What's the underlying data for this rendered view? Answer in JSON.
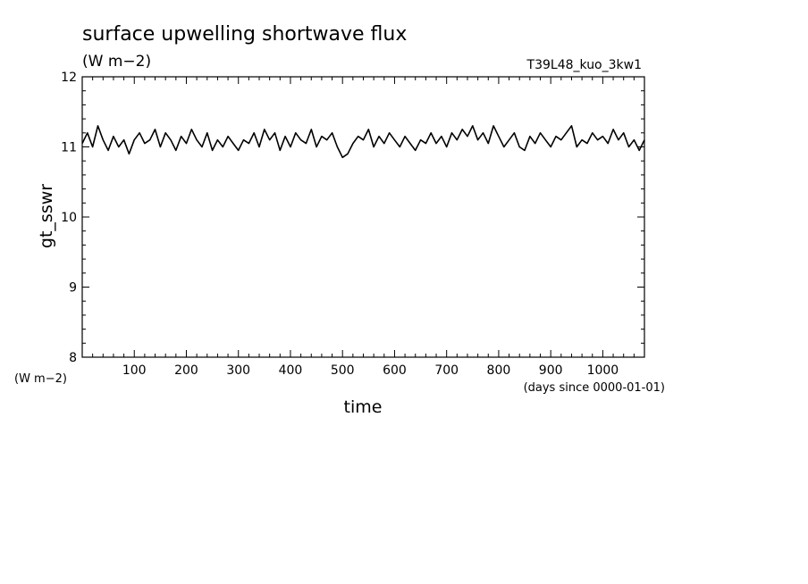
{
  "chart_data": {
    "type": "line",
    "title": "surface upwelling shortwave flux",
    "units": "(W m−2)",
    "run_label": "T39L48_kuo_3kw1",
    "ylabel": "gt_sswr",
    "y_units_label": "(W m−2)",
    "xlabel": "time",
    "x_units_label": "(days since 0000-01-01)",
    "xlim": [
      0,
      1080
    ],
    "ylim": [
      8,
      12
    ],
    "x_ticks": [
      100,
      200,
      300,
      400,
      500,
      600,
      700,
      800,
      900,
      1000
    ],
    "y_ticks": [
      8,
      9,
      10,
      11,
      12
    ],
    "grid": false,
    "series": [
      {
        "x": [
          0,
          10,
          20,
          30,
          40,
          50,
          60,
          70,
          80,
          90,
          100,
          110,
          120,
          130,
          140,
          150,
          160,
          170,
          180,
          190,
          200,
          210,
          220,
          230,
          240,
          250,
          260,
          270,
          280,
          290,
          300,
          310,
          320,
          330,
          340,
          350,
          360,
          370,
          380,
          390,
          400,
          410,
          420,
          430,
          440,
          450,
          460,
          470,
          480,
          490,
          500,
          510,
          520,
          530,
          540,
          550,
          560,
          570,
          580,
          590,
          600,
          610,
          620,
          630,
          640,
          650,
          660,
          670,
          680,
          690,
          700,
          710,
          720,
          730,
          740,
          750,
          760,
          770,
          780,
          790,
          800,
          810,
          820,
          830,
          840,
          850,
          860,
          870,
          880,
          890,
          900,
          910,
          920,
          930,
          940,
          950,
          960,
          970,
          980,
          990,
          1000,
          1010,
          1020,
          1030,
          1040,
          1050,
          1060,
          1070,
          1080
        ],
        "values": [
          11.05,
          11.2,
          11.0,
          11.3,
          11.1,
          10.95,
          11.15,
          11.0,
          11.1,
          10.9,
          11.1,
          11.2,
          11.05,
          11.1,
          11.25,
          11.0,
          11.2,
          11.1,
          10.95,
          11.15,
          11.05,
          11.25,
          11.1,
          11.0,
          11.2,
          10.95,
          11.1,
          11.0,
          11.15,
          11.05,
          10.95,
          11.1,
          11.05,
          11.2,
          11.0,
          11.25,
          11.1,
          11.2,
          10.95,
          11.15,
          11.0,
          11.2,
          11.1,
          11.05,
          11.25,
          11.0,
          11.15,
          11.1,
          11.2,
          11.0,
          10.85,
          10.9,
          11.05,
          11.15,
          11.1,
          11.25,
          11.0,
          11.15,
          11.05,
          11.2,
          11.1,
          11.0,
          11.15,
          11.05,
          10.95,
          11.1,
          11.05,
          11.2,
          11.05,
          11.15,
          11.0,
          11.2,
          11.1,
          11.25,
          11.15,
          11.3,
          11.1,
          11.2,
          11.05,
          11.3,
          11.15,
          11.0,
          11.1,
          11.2,
          11.0,
          10.95,
          11.15,
          11.05,
          11.2,
          11.1,
          11.0,
          11.15,
          11.1,
          11.2,
          11.3,
          11.0,
          11.1,
          11.05,
          11.2,
          11.1,
          11.15,
          11.05,
          11.25,
          11.1,
          11.2,
          11.0,
          11.1,
          10.95,
          11.1
        ]
      }
    ]
  }
}
